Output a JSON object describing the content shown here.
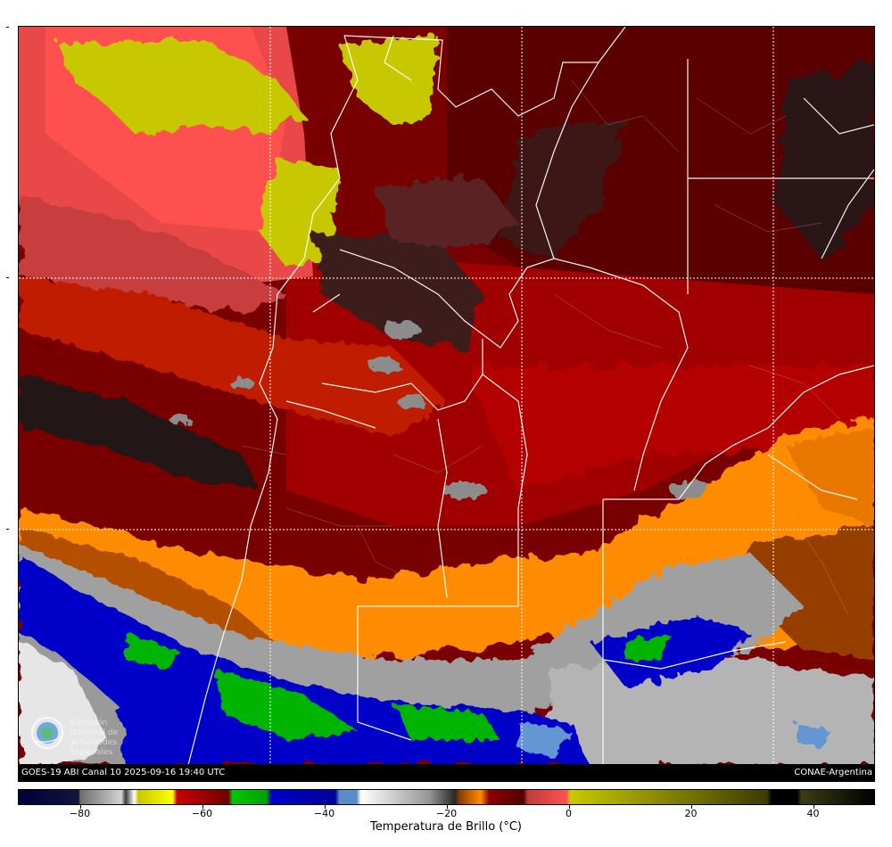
{
  "caption": {
    "left": "GOES-19 ABI Canal 10 2025-09-16 19:40 UTC",
    "right": "CONAE-Argentina"
  },
  "colorbar": {
    "title": "Temperatura de Brillo (°C)",
    "ticks": [
      {
        "value": -80,
        "label": "−80"
      },
      {
        "value": -60,
        "label": "−60"
      },
      {
        "value": -40,
        "label": "−40"
      },
      {
        "value": -20,
        "label": "−20"
      },
      {
        "value": 0,
        "label": "0"
      },
      {
        "value": 20,
        "label": "20"
      },
      {
        "value": 40,
        "label": "40"
      }
    ],
    "range": [
      -90,
      50
    ]
  },
  "logo": {
    "icon": "conae-globe-logo-icon",
    "text": "Comisión Nacional de Actividades Espaciales"
  },
  "colors": {
    "cold_cloud_gray": "#8c8c8c",
    "red_dry": "#b40000",
    "dark_red": "#6e0000",
    "orange": "#ff8c00",
    "yellow_olive": "#c8c800",
    "salmon": "#ff5050",
    "blue": "#0000c8",
    "green": "#00c800"
  }
}
